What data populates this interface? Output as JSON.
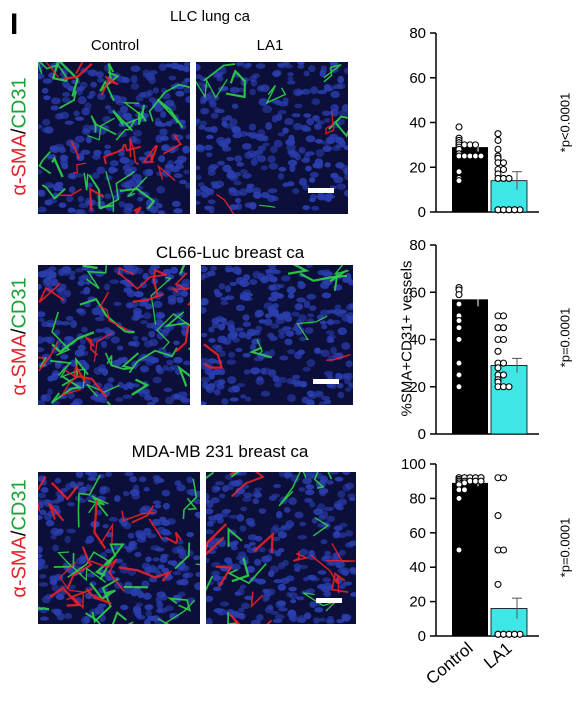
{
  "panel_letter": "I",
  "rows": [
    {
      "title": "LLC lung ca",
      "col_labels": [
        "Control",
        "LA1"
      ],
      "stain_red": "α-SMA",
      "stain_sep": "/",
      "stain_green": "CD31",
      "pvalue": "*p<0.0001"
    },
    {
      "title": "CL66-Luc breast ca",
      "col_labels": [
        "",
        ""
      ],
      "stain_red": "α-SMA",
      "stain_sep": "/",
      "stain_green": "CD31",
      "pvalue": "*p=0.0001"
    },
    {
      "title": "MDA-MB 231 breast ca",
      "col_labels": [
        "",
        ""
      ],
      "stain_red": "α-SMA",
      "stain_sep": "/",
      "stain_green": "CD31",
      "pvalue": "*p=0.0001"
    }
  ],
  "shared_ylabel": "%SMA+CD31+ vessels",
  "colors": {
    "control_bar": "#000000",
    "la1_bar": "#3ee6e6",
    "nuclei_bg": "#0b0f3a",
    "nuclei": "#2b3fb0",
    "green_vessel": "#2fd14a",
    "red_vessel": "#e8222a"
  },
  "chart_data": [
    {
      "type": "bar",
      "title": "",
      "categories": [
        "Control",
        "LA1"
      ],
      "ylim": [
        0,
        80
      ],
      "yticks": [
        0,
        20,
        40,
        60,
        80
      ],
      "values": [
        29,
        14
      ],
      "errors": [
        2,
        4
      ],
      "points": [
        [
          38,
          33,
          32,
          31,
          30,
          30,
          30,
          30,
          29,
          28,
          26,
          25,
          25,
          25,
          25,
          25,
          18,
          15,
          14
        ],
        [
          35,
          32,
          28,
          25,
          24,
          22,
          22,
          19,
          19,
          17,
          15,
          15,
          15,
          1,
          1,
          1,
          1,
          1,
          1,
          1,
          1,
          1
        ]
      ]
    },
    {
      "type": "bar",
      "title": "",
      "categories": [
        "Control",
        "LA1"
      ],
      "ylim": [
        0,
        80
      ],
      "yticks": [
        0,
        20,
        40,
        60,
        80
      ],
      "values": [
        57,
        29
      ],
      "errors": [
        3,
        3
      ],
      "points": [
        [
          62,
          61,
          59,
          55,
          50,
          48,
          45,
          40,
          30,
          25,
          20
        ],
        [
          50,
          50,
          45,
          45,
          40,
          40,
          35,
          30,
          30,
          28,
          25,
          25,
          23,
          22,
          20,
          20,
          20
        ]
      ]
    },
    {
      "type": "bar",
      "title": "",
      "categories": [
        "Control",
        "LA1"
      ],
      "ylim": [
        0,
        100
      ],
      "yticks": [
        0,
        20,
        40,
        60,
        80,
        100
      ],
      "values": [
        89,
        16
      ],
      "errors": [
        2,
        6
      ],
      "points": [
        [
          92,
          92,
          92,
          92,
          92,
          92,
          92,
          92,
          92,
          92,
          91,
          90,
          90,
          90,
          90,
          90,
          90,
          89,
          89,
          88,
          85,
          85,
          80,
          50
        ],
        [
          92,
          92,
          70,
          50,
          50,
          30,
          1,
          1,
          1,
          1,
          1,
          1,
          1,
          1,
          1
        ]
      ]
    }
  ]
}
